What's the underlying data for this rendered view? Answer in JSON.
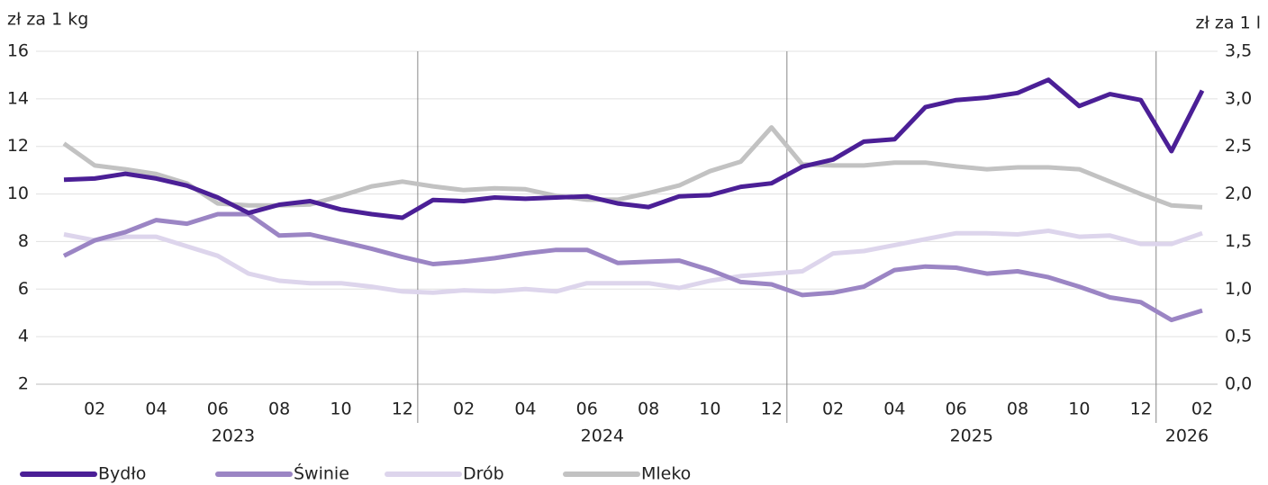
{
  "chart_data": {
    "type": "line",
    "y_label": "zł za 1 kg",
    "y2_label": "zł za 1 l",
    "categories": [
      null,
      "02",
      null,
      "04",
      null,
      "06",
      null,
      "08",
      null,
      "10",
      null,
      "12",
      null,
      "02",
      null,
      "04",
      null,
      "06",
      null,
      "08",
      null,
      "10",
      null,
      "12",
      null,
      "02",
      null,
      "04",
      null,
      "06",
      null,
      "08",
      null,
      "10",
      null,
      "12",
      null,
      "02"
    ],
    "x_groups": [
      "2023",
      "2024",
      "2025",
      "2026"
    ],
    "series": [
      {
        "name": "Bydło",
        "color": "#4b1f96",
        "axis": "y",
        "values": [
          10.6,
          10.65,
          10.85,
          10.65,
          10.35,
          9.85,
          9.2,
          9.55,
          9.7,
          9.35,
          9.15,
          9.0,
          9.75,
          9.7,
          9.85,
          9.8,
          9.85,
          9.9,
          9.6,
          9.45,
          9.9,
          9.95,
          10.3,
          10.45,
          11.15,
          11.45,
          12.2,
          12.3,
          13.65,
          13.95,
          14.05,
          14.25,
          14.8,
          13.7,
          14.2,
          13.95,
          11.8,
          14.35
        ]
      },
      {
        "name": "Świnie",
        "color": "#9b85c4",
        "axis": "y",
        "values": [
          7.4,
          8.05,
          8.4,
          8.9,
          8.75,
          9.15,
          9.15,
          8.25,
          8.3,
          8.0,
          7.7,
          7.35,
          7.05,
          7.15,
          7.3,
          7.5,
          7.65,
          7.65,
          7.1,
          7.15,
          7.2,
          6.8,
          6.3,
          6.2,
          5.75,
          5.85,
          6.1,
          6.8,
          6.95,
          6.9,
          6.65,
          6.75,
          6.5,
          6.1,
          5.65,
          5.45,
          4.7,
          5.1
        ]
      },
      {
        "name": "Drób",
        "color": "#ddd5ec",
        "axis": "y",
        "values": [
          8.3,
          8.05,
          8.2,
          8.2,
          7.8,
          7.4,
          6.65,
          6.35,
          6.25,
          6.25,
          6.1,
          5.9,
          5.85,
          5.95,
          5.9,
          6.0,
          5.9,
          6.25,
          6.25,
          6.25,
          6.05,
          6.35,
          6.55,
          6.65,
          6.75,
          7.5,
          7.6,
          7.85,
          8.1,
          8.35,
          8.35,
          8.3,
          8.45,
          8.2,
          8.25,
          7.9,
          7.9,
          8.35
        ]
      },
      {
        "name": "Mleko",
        "color": "#c2c2c2",
        "axis": "y2",
        "values": [
          2.53,
          2.3,
          2.26,
          2.21,
          2.11,
          1.9,
          1.88,
          1.88,
          1.89,
          1.98,
          2.08,
          2.13,
          2.08,
          2.04,
          2.06,
          2.05,
          1.98,
          1.94,
          1.94,
          2.01,
          2.09,
          2.24,
          2.34,
          2.7,
          2.31,
          2.3,
          2.3,
          2.33,
          2.33,
          2.29,
          2.26,
          2.28,
          2.28,
          2.26,
          2.13,
          2.0,
          1.88,
          1.86
        ]
      }
    ],
    "ylim": [
      2,
      16
    ],
    "yticks": [
      2,
      4,
      6,
      8,
      10,
      12,
      14,
      16
    ],
    "y2lim": [
      0,
      3.5
    ],
    "y2ticks": [
      {
        "value": 0,
        "label": "0,0"
      },
      {
        "value": 0.5,
        "label": "0,5"
      },
      {
        "value": 1,
        "label": "1,0"
      },
      {
        "value": 1.5,
        "label": "1,5"
      },
      {
        "value": 2,
        "label": "2,0"
      },
      {
        "value": 2.5,
        "label": "2,5"
      },
      {
        "value": 3,
        "label": "3,0"
      },
      {
        "value": 3.5,
        "label": "3,5"
      }
    ],
    "grid": true,
    "legend": "bottom-left"
  }
}
